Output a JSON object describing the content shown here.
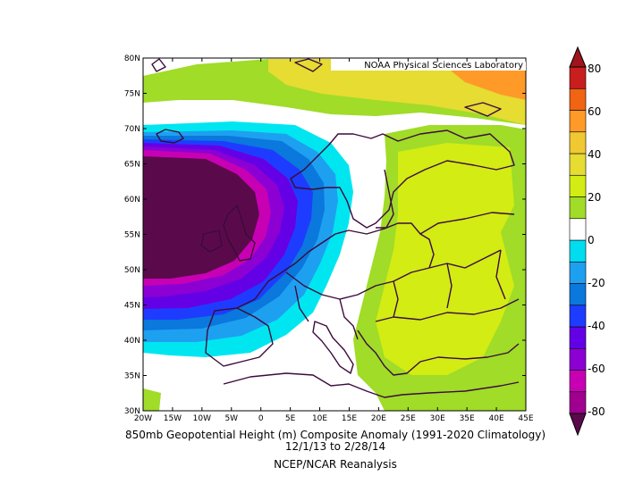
{
  "credit": "NOAA Physical Sciences Laboratory",
  "caption": {
    "line1": "850mb Geopotential Height (m) Composite Anomaly (1991-2020 Climatology)",
    "line2": "12/1/13   to 2/28/14",
    "line3": "NCEP/NCAR Reanalysis"
  },
  "map": {
    "lat_labels": [
      "80N",
      "75N",
      "70N",
      "65N",
      "60N",
      "55N",
      "50N",
      "45N",
      "40N",
      "35N",
      "30N"
    ],
    "lon_labels": [
      "20W",
      "15W",
      "10W",
      "5W",
      "0",
      "5E",
      "10E",
      "15E",
      "20E",
      "25E",
      "30E",
      "35E",
      "40E",
      "45E"
    ],
    "lat_range": [
      30,
      80
    ],
    "lon_range": [
      -20,
      45
    ]
  },
  "colorbar": {
    "labels": [
      "80",
      "60",
      "40",
      "20",
      "0",
      "-20",
      "-40",
      "-60",
      "-80"
    ],
    "levels": [
      -80,
      -70,
      -60,
      -50,
      -40,
      -30,
      -20,
      -10,
      10,
      20,
      30,
      40,
      50,
      60,
      70,
      80
    ],
    "colors": [
      "#a00090",
      "#c800b4",
      "#8c00d4",
      "#6400e6",
      "#1e3cff",
      "#0a78dc",
      "#1ea0f0",
      "#00dcf0",
      "#ffffff",
      "#a0dc28",
      "#d2ec14",
      "#e6dc32",
      "#f0c832",
      "#ff9a28",
      "#f06414",
      "#c81e1e"
    ]
  },
  "chart_data": {
    "type": "heatmap",
    "variable": "850mb Geopotential Height (m) Composite Anomaly",
    "climatology": "1991-2020",
    "period": "12/1/13 to 2/28/14",
    "source": "NCEP/NCAR Reanalysis",
    "xlim": [
      -20,
      45
    ],
    "ylim": [
      30,
      80
    ],
    "zlim": [
      -80,
      80
    ]
  }
}
